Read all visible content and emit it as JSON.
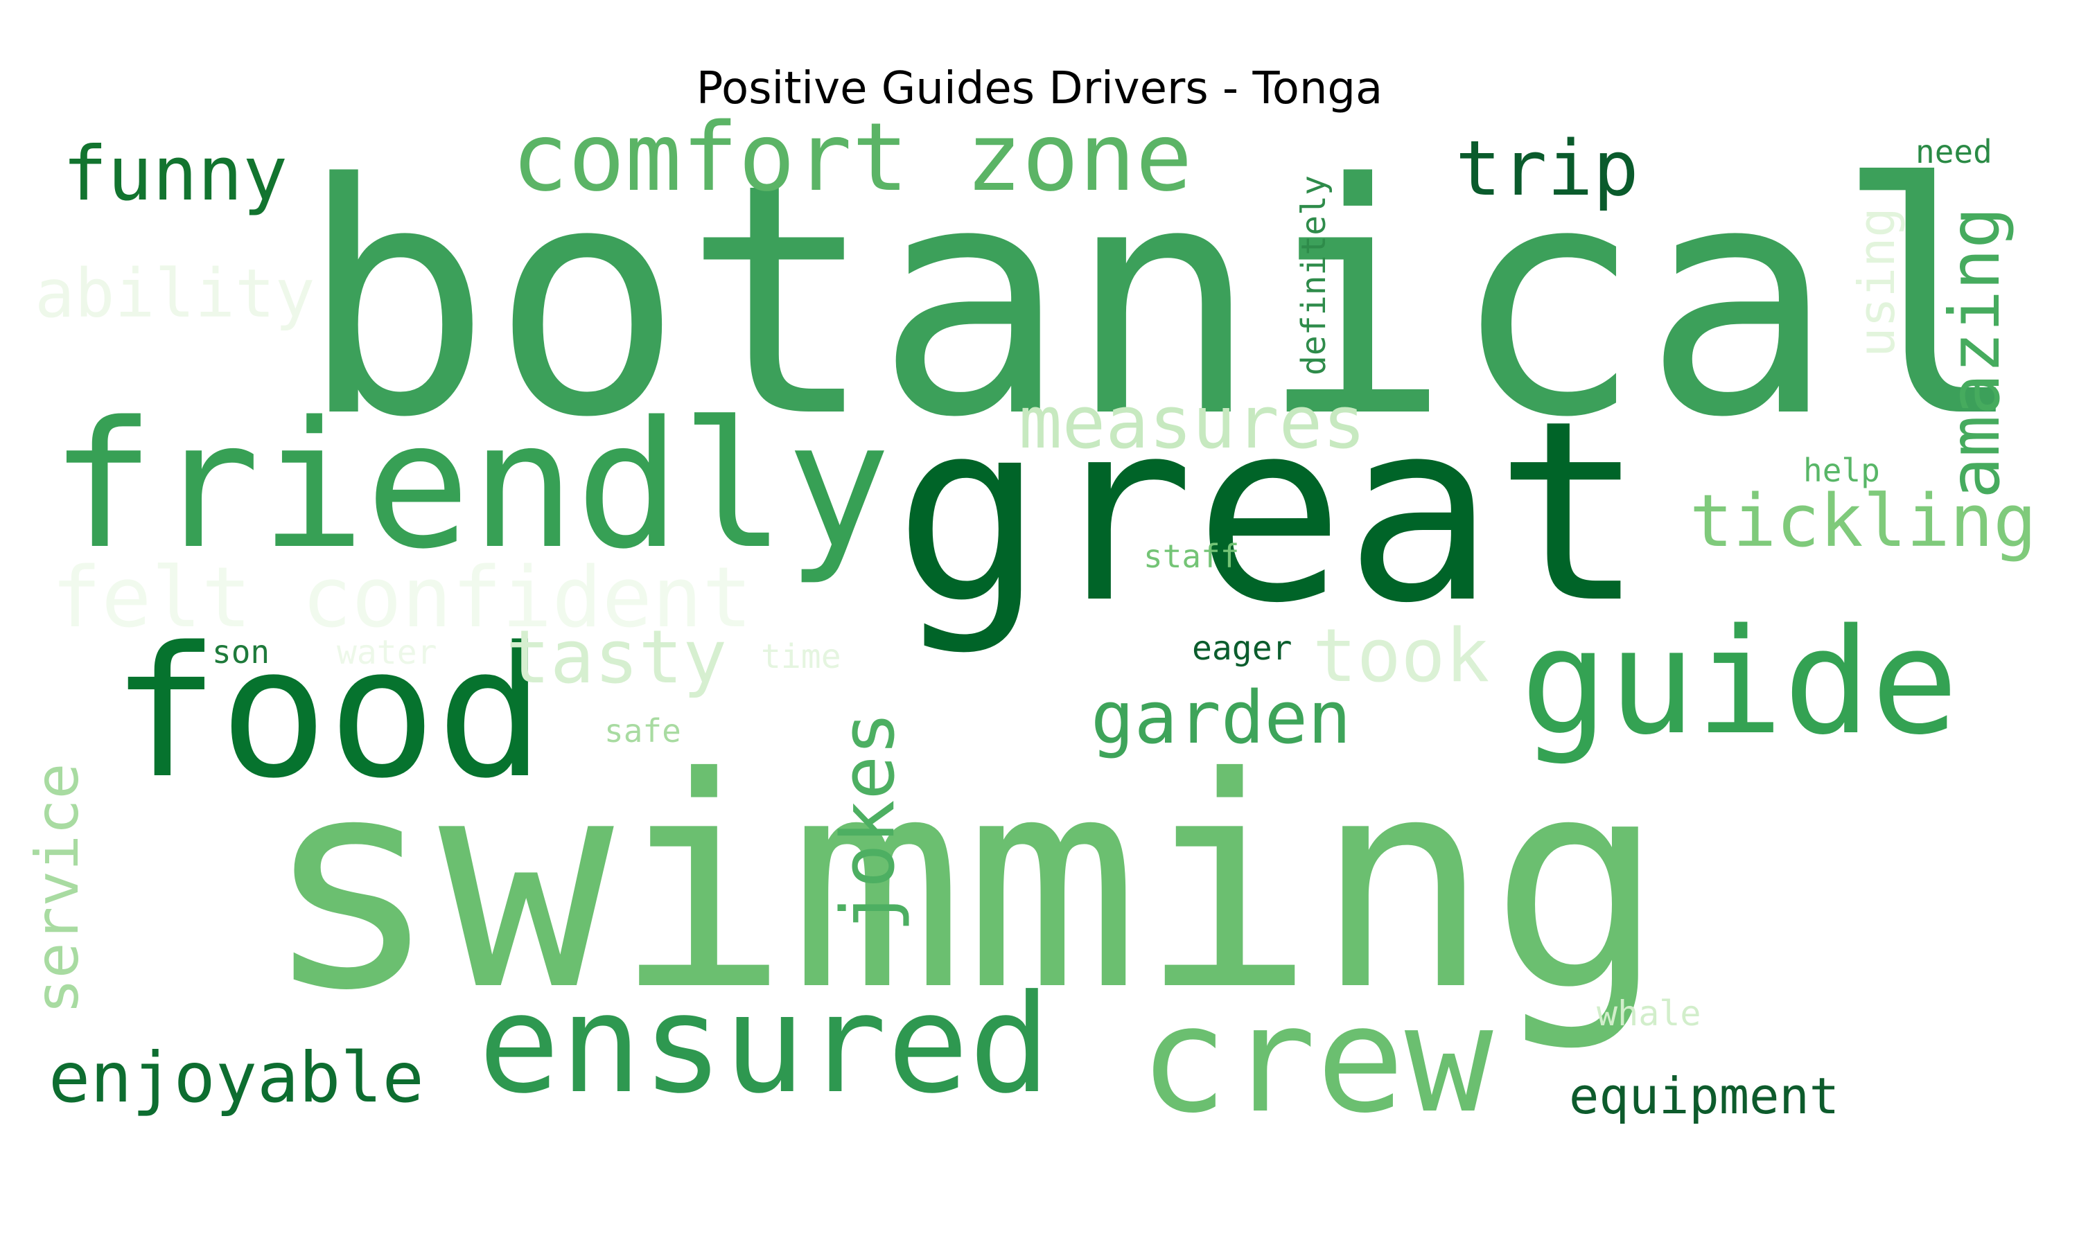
{
  "title": "Positive Guides Drivers - Tonga",
  "words": [
    {
      "text": "botanical",
      "color": "#3ca05a"
    },
    {
      "text": "swimming",
      "color": "#6bbf70"
    },
    {
      "text": "great",
      "color": "#006428"
    },
    {
      "text": "friendly",
      "color": "#37a055"
    },
    {
      "text": "food",
      "color": "#06732e"
    },
    {
      "text": "guide",
      "color": "#34a253"
    },
    {
      "text": "crew",
      "color": "#6bbf70"
    },
    {
      "text": "ensured",
      "color": "#2e9850"
    },
    {
      "text": "comfort zone",
      "color": "#5bb466"
    },
    {
      "text": "trip",
      "color": "#0a5b2c"
    },
    {
      "text": "funny",
      "color": "#12742f"
    },
    {
      "text": "ability",
      "color": "#eef8ea"
    },
    {
      "text": "measures",
      "color": "#c7e9c0"
    },
    {
      "text": "tickling",
      "color": "#7fca7b"
    },
    {
      "text": "felt confident",
      "color": "#f1faee"
    },
    {
      "text": "tasty",
      "color": "#d6efd0"
    },
    {
      "text": "took",
      "color": "#dbf1d5"
    },
    {
      "text": "garden",
      "color": "#3ea45a"
    },
    {
      "text": "enjoyable",
      "color": "#0d6d30"
    },
    {
      "text": "equipment",
      "color": "#0d5b2c"
    },
    {
      "text": "jokes",
      "color": "#4daf62"
    },
    {
      "text": "service",
      "color": "#a8dba1"
    },
    {
      "text": "amazing",
      "color": "#46ab5e"
    },
    {
      "text": "using",
      "color": "#e2f4dc"
    },
    {
      "text": "definitely",
      "color": "#2e8b4a"
    },
    {
      "text": "need",
      "color": "#2a8a45"
    },
    {
      "text": "help",
      "color": "#58b667"
    },
    {
      "text": "staff",
      "color": "#74c476"
    },
    {
      "text": "son",
      "color": "#1e7a3b"
    },
    {
      "text": "water",
      "color": "#edf8e9"
    },
    {
      "text": "time",
      "color": "#e5f5e0"
    },
    {
      "text": "eager",
      "color": "#0b5d2d"
    },
    {
      "text": "safe",
      "color": "#a8dba1"
    },
    {
      "text": "whale",
      "color": "#d2eecb"
    }
  ]
}
